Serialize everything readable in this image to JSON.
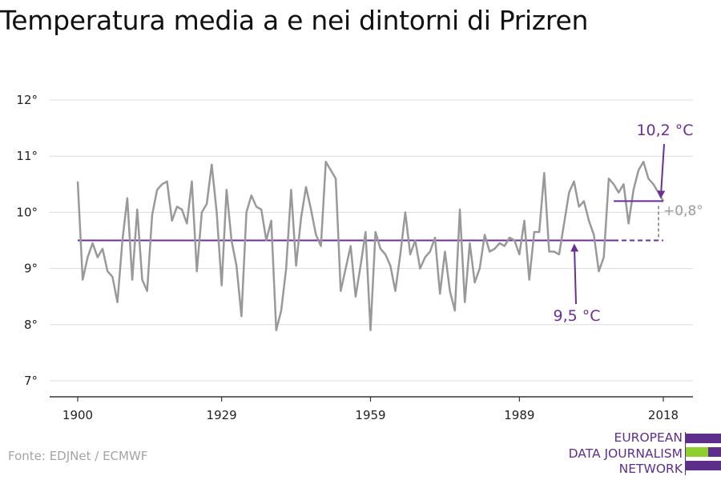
{
  "title": "Temperatura media a e nei dintorni di Prizren",
  "source": "Fonte: EDJNet / ECMWF",
  "logo": {
    "lines": [
      "EUROPEAN",
      "DATA JOURNALISM",
      "NETWORK"
    ]
  },
  "colors": {
    "series": "#999999",
    "accent": "#6b2f93",
    "axis": "#333333",
    "grid": "#dcdcdc",
    "annotation": "#9a9a9a",
    "logo_green": "#8fce2e"
  },
  "chart_data": {
    "type": "line",
    "title": "Temperatura media a e nei dintorni di Prizren",
    "xlabel": "",
    "ylabel": "",
    "xlim": [
      1900,
      2018
    ],
    "ylim": [
      7,
      12
    ],
    "x_ticks": [
      1900,
      1929,
      1959,
      1989,
      2018
    ],
    "x_tick_labels": [
      "1900",
      "1929",
      "1959",
      "1989",
      "2018"
    ],
    "y_ticks": [
      7,
      8,
      9,
      10,
      11,
      12
    ],
    "y_tick_labels": [
      "7°",
      "8°",
      "9°",
      "10°",
      "11°",
      "12°"
    ],
    "grid": true,
    "x": [
      1900,
      1901,
      1902,
      1903,
      1904,
      1905,
      1906,
      1907,
      1908,
      1909,
      1910,
      1911,
      1912,
      1913,
      1914,
      1915,
      1916,
      1917,
      1918,
      1919,
      1920,
      1921,
      1922,
      1923,
      1924,
      1925,
      1926,
      1927,
      1928,
      1929,
      1930,
      1931,
      1932,
      1933,
      1934,
      1935,
      1936,
      1937,
      1938,
      1939,
      1940,
      1941,
      1942,
      1943,
      1944,
      1945,
      1946,
      1947,
      1948,
      1949,
      1950,
      1951,
      1952,
      1953,
      1954,
      1955,
      1956,
      1957,
      1958,
      1959,
      1960,
      1961,
      1962,
      1963,
      1964,
      1965,
      1966,
      1967,
      1968,
      1969,
      1970,
      1971,
      1972,
      1973,
      1974,
      1975,
      1976,
      1977,
      1978,
      1979,
      1980,
      1981,
      1982,
      1983,
      1984,
      1985,
      1986,
      1987,
      1988,
      1989,
      1990,
      1991,
      1992,
      1993,
      1994,
      1995,
      1996,
      1997,
      1998,
      1999,
      2000,
      2001,
      2002,
      2003,
      2004,
      2005,
      2006,
      2007,
      2008,
      2009,
      2010,
      2011,
      2012,
      2013,
      2014,
      2015,
      2016,
      2017,
      2018
    ],
    "series": [
      {
        "values": [
          10.55,
          8.8,
          9.2,
          9.45,
          9.2,
          9.35,
          8.95,
          8.85,
          8.4,
          9.5,
          10.25,
          8.8,
          10.05,
          8.8,
          8.6,
          9.95,
          10.4,
          10.5,
          10.55,
          9.85,
          10.1,
          10.05,
          9.8,
          10.55,
          8.95,
          10.0,
          10.15,
          10.85,
          10.0,
          8.7,
          10.4,
          9.5,
          9.05,
          8.15,
          10.0,
          10.3,
          10.1,
          10.05,
          9.5,
          9.85,
          7.9,
          8.25,
          9.0,
          10.4,
          9.05,
          9.9,
          10.45,
          10.05,
          9.6,
          9.4,
          10.9,
          10.75,
          10.6,
          8.6,
          9.0,
          9.4,
          8.5,
          9.05,
          9.65,
          7.9,
          9.65,
          9.35,
          9.25,
          9.05,
          8.6,
          9.25,
          10.0,
          9.25,
          9.5,
          9.0,
          9.2,
          9.3,
          9.55,
          8.55,
          9.3,
          8.6,
          8.25,
          10.05,
          8.4,
          9.45,
          8.75,
          9.0,
          9.6,
          9.3,
          9.35,
          9.45,
          9.4,
          9.55,
          9.5,
          9.25,
          9.85,
          8.8,
          9.65,
          9.65,
          10.7,
          9.3,
          9.3,
          9.25,
          9.8,
          10.35,
          10.55,
          10.1,
          10.2,
          9.85,
          9.6,
          8.95,
          9.2,
          10.6,
          10.5,
          10.35,
          10.5,
          9.8,
          10.4,
          10.75,
          10.9,
          10.6,
          10.5,
          10.35,
          10.2
        ]
      }
    ],
    "annotations": {
      "baseline": {
        "value": 9.5,
        "label": "9,5 °C",
        "from": 1900,
        "to": 2018
      },
      "recent": {
        "value": 10.2,
        "label": "10,2 °C",
        "from": 2008,
        "to": 2018
      },
      "difference_label": "+0,8°"
    }
  }
}
